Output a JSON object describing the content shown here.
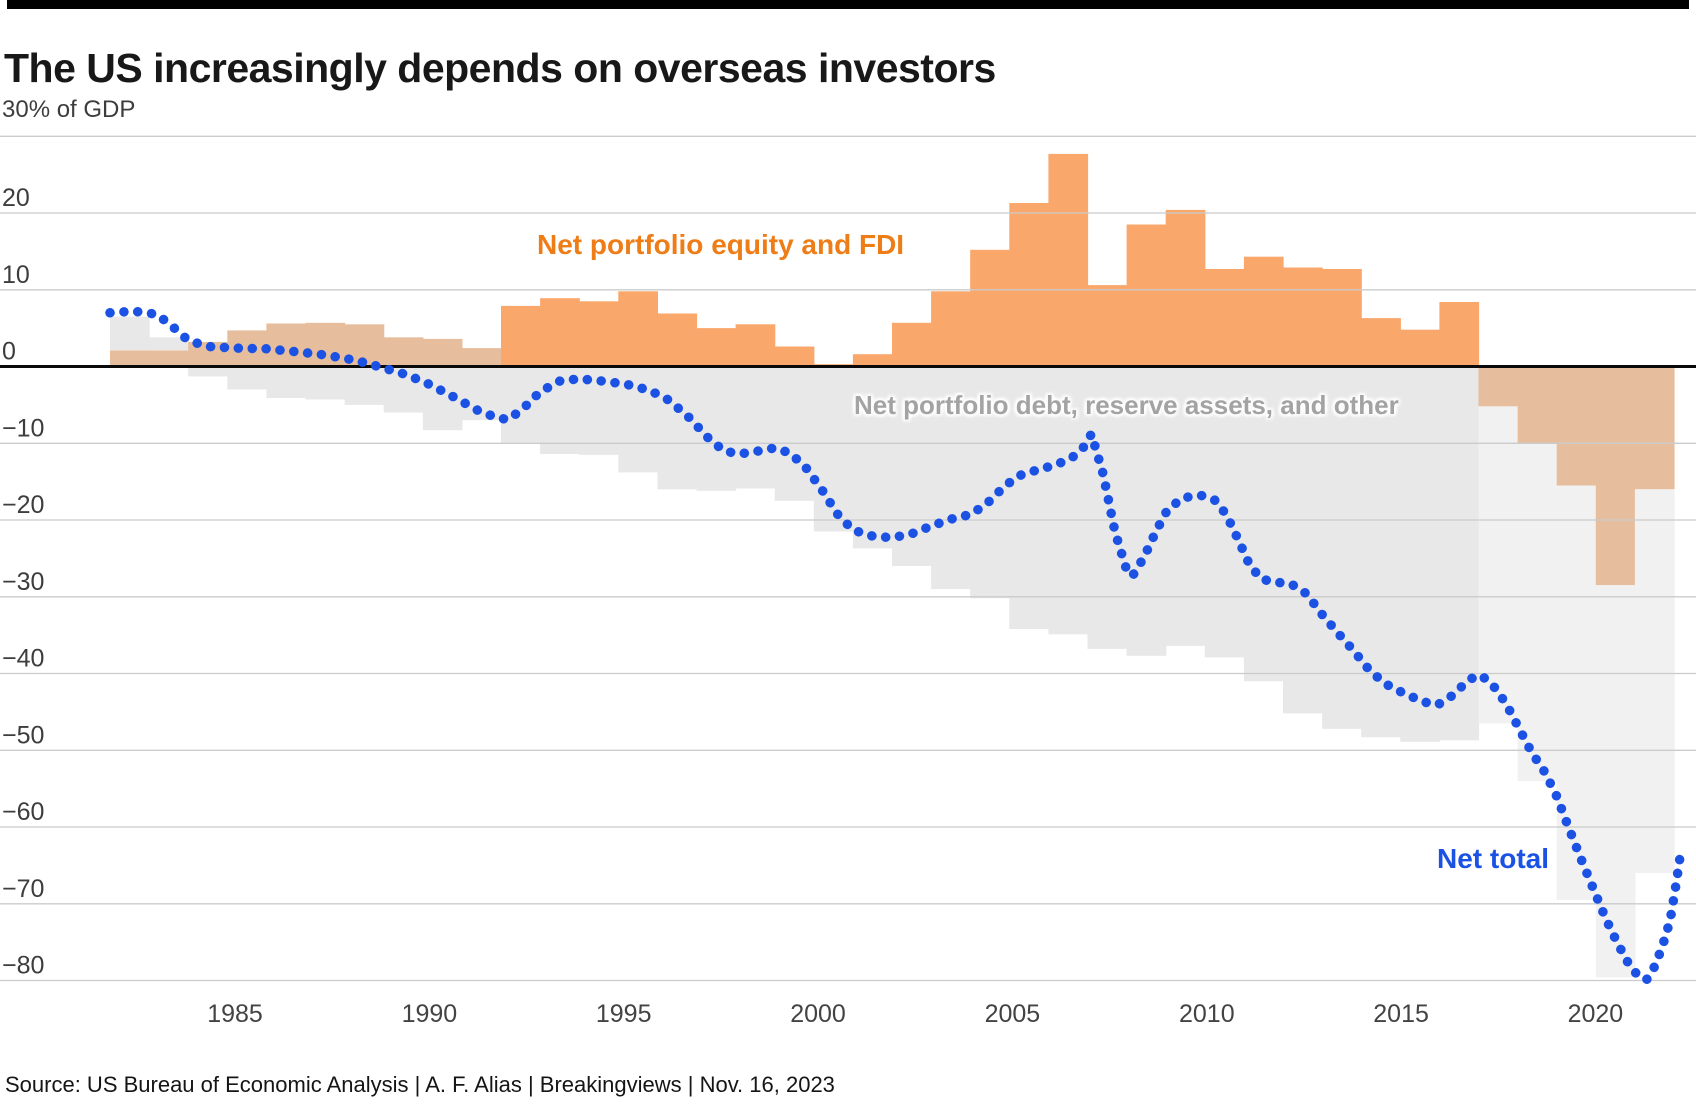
{
  "header": {
    "title": "The US increasingly depends on overseas investors"
  },
  "footer": {
    "source": "Source: US Bureau of Economic Analysis | A. F. Alias | Breakingviews | Nov. 16, 2023"
  },
  "chart_data": {
    "type": "combo_bar_line",
    "title": "The US increasingly depends on overseas investors",
    "unit_label": "30% of GDP",
    "xlabel": "",
    "ylabel": "% of GDP",
    "ylim": [
      -85,
      30
    ],
    "grid": "horizontal",
    "x_ticks": [
      {
        "value": 1985,
        "label": "1985"
      },
      {
        "value": 1990,
        "label": "1990"
      },
      {
        "value": 1995,
        "label": "1995"
      },
      {
        "value": 2000,
        "label": "2000"
      },
      {
        "value": 2005,
        "label": "2005"
      },
      {
        "value": 2010,
        "label": "2010"
      },
      {
        "value": 2015,
        "label": "2015"
      },
      {
        "value": 2020,
        "label": "2020"
      }
    ],
    "y_grid_values": [
      30,
      20,
      10,
      0,
      -10,
      -20,
      -30,
      -40,
      -50,
      -60,
      -70,
      -80
    ],
    "y_ticks": [
      {
        "value": 20,
        "label": "20"
      },
      {
        "value": 10,
        "label": "10"
      },
      {
        "value": 0,
        "label": "0"
      },
      {
        "value": -10,
        "label": "−10"
      },
      {
        "value": -20,
        "label": "−20"
      },
      {
        "value": -30,
        "label": "−30"
      },
      {
        "value": -40,
        "label": "−40"
      },
      {
        "value": -50,
        "label": "−50"
      },
      {
        "value": -60,
        "label": "−60"
      },
      {
        "value": -70,
        "label": "−70"
      },
      {
        "value": -80,
        "label": "−80"
      }
    ],
    "colors": {
      "equity_bright": "#F9A76B",
      "equity_muted": "#E7BE9D",
      "debt_gray": "#E8E8E8",
      "debt_gray_pale": "#F1F1F1",
      "net_total_blue": "#1B52E4",
      "equity_label": "#EE7D17",
      "debt_label": "#A3A3A3",
      "gridline": "#CBCBCB",
      "zero_line": "#0A0A0A"
    },
    "bar_series_names": [
      "Net portfolio equity and FDI",
      "Net portfolio debt, reserve assets, and other"
    ],
    "bars": [
      {
        "year": 1982,
        "equity_fdi": 2.1,
        "debt_other": 4.4
      },
      {
        "year": 1983,
        "equity_fdi": 2.1,
        "debt_other": 1.7
      },
      {
        "year": 1984,
        "equity_fdi": 3.2,
        "debt_other": -1.3
      },
      {
        "year": 1985,
        "equity_fdi": 4.7,
        "debt_other": -3.0
      },
      {
        "year": 1986,
        "equity_fdi": 5.6,
        "debt_other": -4.1
      },
      {
        "year": 1987,
        "equity_fdi": 5.7,
        "debt_other": -4.3
      },
      {
        "year": 1988,
        "equity_fdi": 5.5,
        "debt_other": -5.0
      },
      {
        "year": 1989,
        "equity_fdi": 3.8,
        "debt_other": -6.0
      },
      {
        "year": 1990,
        "equity_fdi": 3.6,
        "debt_other": -8.3
      },
      {
        "year": 1991,
        "equity_fdi": 2.4,
        "debt_other": -7.0
      },
      {
        "year": 1992,
        "equity_fdi": 7.9,
        "debt_other": -9.9
      },
      {
        "year": 1993,
        "equity_fdi": 8.9,
        "debt_other": -11.4
      },
      {
        "year": 1994,
        "equity_fdi": 8.5,
        "debt_other": -11.5
      },
      {
        "year": 1995,
        "equity_fdi": 9.8,
        "debt_other": -13.8
      },
      {
        "year": 1996,
        "equity_fdi": 6.9,
        "debt_other": -16.0
      },
      {
        "year": 1997,
        "equity_fdi": 5.0,
        "debt_other": -16.2
      },
      {
        "year": 1998,
        "equity_fdi": 5.5,
        "debt_other": -15.9
      },
      {
        "year": 1999,
        "equity_fdi": 2.6,
        "debt_other": -17.5
      },
      {
        "year": 2000,
        "equity_fdi": 0.3,
        "debt_other": -21.5
      },
      {
        "year": 2001,
        "equity_fdi": 1.6,
        "debt_other": -23.7
      },
      {
        "year": 2002,
        "equity_fdi": 5.7,
        "debt_other": -26.0
      },
      {
        "year": 2003,
        "equity_fdi": 9.8,
        "debt_other": -29.0
      },
      {
        "year": 2004,
        "equity_fdi": 15.2,
        "debt_other": -30.2
      },
      {
        "year": 2005,
        "equity_fdi": 21.3,
        "debt_other": -34.2
      },
      {
        "year": 2006,
        "equity_fdi": 27.7,
        "debt_other": -34.9
      },
      {
        "year": 2007,
        "equity_fdi": 10.6,
        "debt_other": -36.8
      },
      {
        "year": 2008,
        "equity_fdi": 18.5,
        "debt_other": -37.7
      },
      {
        "year": 2009,
        "equity_fdi": 20.4,
        "debt_other": -36.4
      },
      {
        "year": 2010,
        "equity_fdi": 12.7,
        "debt_other": -37.9
      },
      {
        "year": 2011,
        "equity_fdi": 14.3,
        "debt_other": -41.0
      },
      {
        "year": 2012,
        "equity_fdi": 12.9,
        "debt_other": -45.2
      },
      {
        "year": 2013,
        "equity_fdi": 12.7,
        "debt_other": -47.2
      },
      {
        "year": 2014,
        "equity_fdi": 6.3,
        "debt_other": -48.3
      },
      {
        "year": 2015,
        "equity_fdi": 4.8,
        "debt_other": -48.9
      },
      {
        "year": 2016,
        "equity_fdi": 8.4,
        "debt_other": -48.7
      },
      {
        "year": 2017,
        "equity_fdi": -5.2,
        "debt_other": -41.3
      },
      {
        "year": 2018,
        "equity_fdi": -10.0,
        "debt_other": -44.0
      },
      {
        "year": 2019,
        "equity_fdi": -15.5,
        "debt_other": -54.0
      },
      {
        "year": 2020,
        "equity_fdi": -28.5,
        "debt_other": -51.1
      },
      {
        "year": 2021,
        "equity_fdi": -16.0,
        "debt_other": -50.0
      }
    ],
    "muted_through_year": 1991,
    "net_total_points": [
      [
        1982.0,
        7.0
      ],
      [
        1982.6,
        7.2
      ],
      [
        1983.2,
        6.8
      ],
      [
        1983.6,
        5.2
      ],
      [
        1984.0,
        3.4
      ],
      [
        1984.5,
        2.6
      ],
      [
        1985.2,
        2.4
      ],
      [
        1986.0,
        2.3
      ],
      [
        1986.8,
        1.9
      ],
      [
        1987.5,
        1.5
      ],
      [
        1988.3,
        0.8
      ],
      [
        1989.0,
        -0.2
      ],
      [
        1989.6,
        -1.1
      ],
      [
        1990.2,
        -2.4
      ],
      [
        1990.8,
        -4.0
      ],
      [
        1991.4,
        -5.7
      ],
      [
        1991.9,
        -6.7
      ],
      [
        1992.2,
        -6.9
      ],
      [
        1992.6,
        -5.3
      ],
      [
        1993.0,
        -3.3
      ],
      [
        1993.5,
        -1.9
      ],
      [
        1994.0,
        -1.6
      ],
      [
        1994.6,
        -1.9
      ],
      [
        1995.2,
        -2.3
      ],
      [
        1995.8,
        -3.1
      ],
      [
        1996.3,
        -4.4
      ],
      [
        1996.8,
        -6.6
      ],
      [
        1997.3,
        -9.3
      ],
      [
        1997.7,
        -11.0
      ],
      [
        1998.1,
        -11.4
      ],
      [
        1998.6,
        -11.0
      ],
      [
        1999.0,
        -10.6
      ],
      [
        1999.4,
        -11.3
      ],
      [
        1999.8,
        -13.2
      ],
      [
        2000.2,
        -16.0
      ],
      [
        2000.6,
        -19.2
      ],
      [
        2001.0,
        -21.3
      ],
      [
        2001.5,
        -22.1
      ],
      [
        2002.0,
        -22.3
      ],
      [
        2002.5,
        -21.8
      ],
      [
        2003.0,
        -20.8
      ],
      [
        2003.5,
        -19.9
      ],
      [
        2004.0,
        -19.3
      ],
      [
        2004.4,
        -18.0
      ],
      [
        2004.8,
        -16.0
      ],
      [
        2005.2,
        -14.3
      ],
      [
        2005.7,
        -13.5
      ],
      [
        2006.2,
        -12.8
      ],
      [
        2006.6,
        -11.9
      ],
      [
        2006.9,
        -10.5
      ],
      [
        2007.1,
        -8.8
      ],
      [
        2007.4,
        -14.0
      ],
      [
        2007.7,
        -21.5
      ],
      [
        2008.0,
        -26.5
      ],
      [
        2008.15,
        -27.3
      ],
      [
        2008.45,
        -24.8
      ],
      [
        2008.75,
        -21.5
      ],
      [
        2009.05,
        -18.6
      ],
      [
        2009.45,
        -17.1
      ],
      [
        2009.9,
        -16.8
      ],
      [
        2010.25,
        -17.4
      ],
      [
        2010.55,
        -19.3
      ],
      [
        2010.85,
        -22.5
      ],
      [
        2011.15,
        -25.9
      ],
      [
        2011.45,
        -27.7
      ],
      [
        2011.8,
        -28.1
      ],
      [
        2012.2,
        -28.3
      ],
      [
        2012.6,
        -29.6
      ],
      [
        2013.0,
        -32.3
      ],
      [
        2013.4,
        -34.7
      ],
      [
        2013.8,
        -37.0
      ],
      [
        2014.2,
        -39.5
      ],
      [
        2014.6,
        -41.3
      ],
      [
        2015.1,
        -42.6
      ],
      [
        2015.6,
        -43.7
      ],
      [
        2015.95,
        -44.1
      ],
      [
        2016.35,
        -42.8
      ],
      [
        2016.75,
        -40.8
      ],
      [
        2017.05,
        -40.2
      ],
      [
        2017.35,
        -41.4
      ],
      [
        2017.7,
        -43.9
      ],
      [
        2018.0,
        -46.8
      ],
      [
        2018.35,
        -50.2
      ],
      [
        2018.7,
        -52.9
      ],
      [
        2019.0,
        -56.0
      ],
      [
        2019.3,
        -60.0
      ],
      [
        2019.65,
        -64.5
      ],
      [
        2019.95,
        -68.2
      ],
      [
        2020.25,
        -71.9
      ],
      [
        2020.55,
        -75.1
      ],
      [
        2020.85,
        -77.9
      ],
      [
        2021.1,
        -79.5
      ],
      [
        2021.3,
        -79.9
      ],
      [
        2021.5,
        -78.2
      ],
      [
        2021.7,
        -75.6
      ],
      [
        2021.9,
        -72.2
      ],
      [
        2022.05,
        -67.5
      ],
      [
        2022.15,
        -64.0
      ]
    ],
    "annotations": [
      {
        "id": "equity-fdi",
        "text": "Net portfolio equity and FDI",
        "color": "#EE7D17"
      },
      {
        "id": "debt-reserves",
        "text": "Net portfolio debt, reserve assets, and other",
        "color": "#A3A3A3"
      },
      {
        "id": "net-total",
        "text": "Net total",
        "color": "#1B52E4"
      }
    ]
  }
}
